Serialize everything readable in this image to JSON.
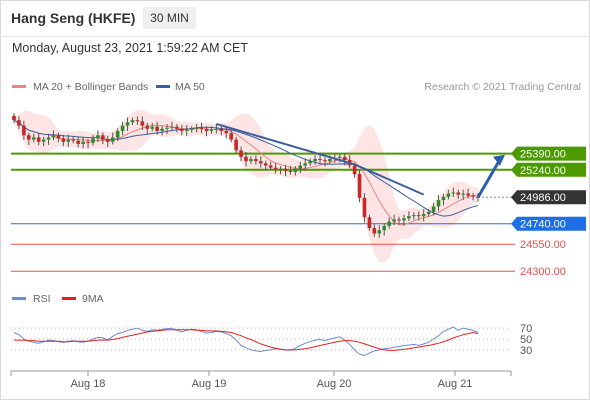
{
  "header": {
    "title": "Hang Seng (HKFE)",
    "timeframe": "30 MIN",
    "datetime": "Monday, August 23, 2021 1:59:22 AM CET"
  },
  "copyright": "Research © 2021 Trading Central",
  "colors": {
    "resistance": "#4c9a00",
    "current": "#333333",
    "support_blue": "#1e6ee6",
    "support_red": "#e84c4c",
    "ma20": "#f08080",
    "ma50": "#3a5f9e",
    "bollinger_fill": "#fde0e0",
    "rsi": "#6b8bd6",
    "rsi_ma": "#e02020",
    "arrow": "#2a5fa8"
  },
  "chart_data": [
    {
      "type": "candlestick",
      "legend": [
        {
          "name": "MA 20 + Bollinger Bands",
          "color": "#f08080"
        },
        {
          "name": "MA 50",
          "color": "#3a5f9e"
        }
      ],
      "x_ticks": [
        "Aug 18",
        "Aug 19",
        "Aug 20",
        "Aug 21"
      ],
      "ylim": [
        24200,
        25850
      ],
      "price_levels": [
        {
          "value": 25390.0,
          "label": "25390.00",
          "kind": "resistance"
        },
        {
          "value": 25240.0,
          "label": "25240.00",
          "kind": "resistance"
        },
        {
          "value": 24986.0,
          "label": "24986.00",
          "kind": "current"
        },
        {
          "value": 24740.0,
          "label": "24740.00",
          "kind": "support_blue"
        },
        {
          "value": 24550.0,
          "label": "24550.00",
          "kind": "support_red"
        },
        {
          "value": 24300.0,
          "label": "24300.00",
          "kind": "support_red"
        }
      ],
      "close": [
        25700,
        25650,
        25560,
        25520,
        25540,
        25500,
        25520,
        25540,
        25560,
        25530,
        25500,
        25520,
        25510,
        25480,
        25500,
        25490,
        25530,
        25560,
        25520,
        25500,
        25540,
        25600,
        25650,
        25680,
        25700,
        25690,
        25650,
        25620,
        25640,
        25600,
        25620,
        25630,
        25640,
        25620,
        25600,
        25610,
        25620,
        25630,
        25620,
        25600,
        25610,
        25620,
        25600,
        25580,
        25520,
        25420,
        25360,
        25320,
        25340,
        25320,
        25300,
        25280,
        25260,
        25240,
        25250,
        25230,
        25220,
        25250,
        25280,
        25300,
        25320,
        25340,
        25330,
        25320,
        25340,
        25350,
        25360,
        25330,
        25280,
        25200,
        24980,
        24800,
        24700,
        24650,
        24680,
        24720,
        24760,
        24780,
        24770,
        24790,
        24810,
        24820,
        24810,
        24830,
        24850,
        24900,
        24960,
        24990,
        25020,
        25030,
        25010,
        25020,
        25000,
        24990,
        24986
      ],
      "trendlines": [
        {
          "from": [
            25665,
            41
          ],
          "to": [
            25290,
            69
          ],
          "color": "#3a5f9e"
        },
        {
          "from": [
            25290,
            69
          ],
          "to": [
            25010,
            83
          ],
          "color": "#3a5f9e"
        }
      ],
      "forecast_arrow": {
        "from": 24986,
        "to": 25380
      }
    },
    {
      "type": "line",
      "legend": [
        {
          "name": "RSI",
          "color": "#6b8bd6"
        },
        {
          "name": "9MA",
          "color": "#e02020"
        }
      ],
      "ylim": [
        15,
        85
      ],
      "y_ticks": [
        70,
        50,
        30
      ],
      "series": [
        {
          "name": "RSI",
          "values": [
            62,
            58,
            50,
            46,
            44,
            42,
            45,
            48,
            47,
            45,
            44,
            46,
            47,
            45,
            44,
            46,
            50,
            53,
            52,
            48,
            55,
            60,
            62,
            66,
            68,
            70,
            66,
            64,
            67,
            66,
            68,
            69,
            70,
            66,
            63,
            66,
            68,
            67,
            64,
            61,
            62,
            64,
            63,
            60,
            56,
            48,
            38,
            34,
            30,
            28,
            27,
            29,
            30,
            32,
            31,
            30,
            29,
            33,
            38,
            42,
            45,
            48,
            49,
            47,
            50,
            52,
            54,
            48,
            40,
            30,
            22,
            20,
            24,
            28,
            30,
            32,
            33,
            35,
            36,
            38,
            39,
            40,
            38,
            41,
            44,
            50,
            56,
            64,
            68,
            72,
            66,
            70,
            68,
            66,
            62
          ]
        },
        {
          "name": "9MA",
          "values": [
            48,
            48,
            48,
            47,
            47,
            46,
            46,
            46,
            46,
            46,
            45,
            45,
            46,
            46,
            46,
            46,
            47,
            48,
            48,
            48,
            49,
            51,
            53,
            55,
            57,
            59,
            61,
            63,
            64,
            65,
            66,
            67,
            67,
            67,
            67,
            67,
            67,
            66,
            66,
            65,
            65,
            65,
            64,
            63,
            62,
            59,
            56,
            52,
            49,
            45,
            41,
            38,
            35,
            33,
            31,
            30,
            30,
            30,
            31,
            32,
            34,
            36,
            38,
            40,
            42,
            44,
            46,
            47,
            47,
            46,
            44,
            41,
            38,
            35,
            32,
            30,
            29,
            29,
            30,
            31,
            32,
            34,
            35,
            37,
            38,
            40,
            42,
            45,
            48,
            52,
            55,
            58,
            60,
            62,
            60
          ]
        }
      ]
    }
  ]
}
